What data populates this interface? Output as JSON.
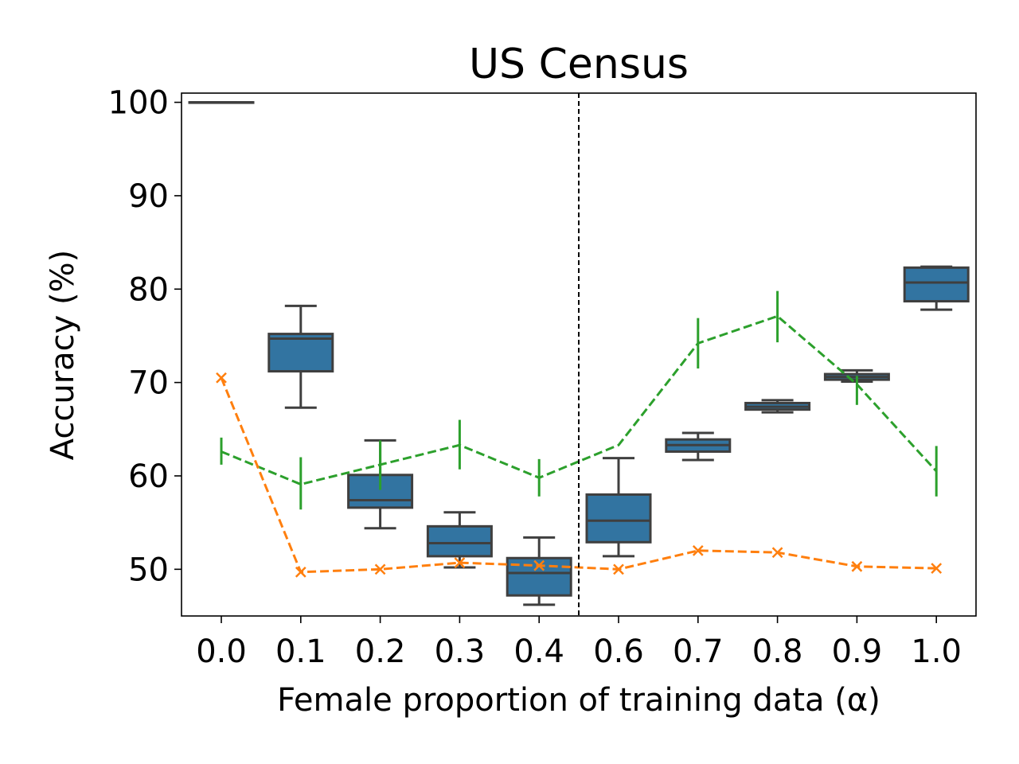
{
  "chart_data": {
    "type": "box",
    "title": "US Census",
    "xlabel": "Female proportion of training data (α)",
    "ylabel": "Accuracy (%)",
    "categories": [
      "0.0",
      "0.1",
      "0.2",
      "0.3",
      "0.4",
      "0.6",
      "0.7",
      "0.8",
      "0.9",
      "1.0"
    ],
    "ylim": [
      45,
      101
    ],
    "yticks": [
      50,
      60,
      70,
      80,
      90,
      100
    ],
    "grid": false,
    "divider_between": [
      "0.4",
      "0.6"
    ],
    "boxes": [
      {
        "x": "0.0",
        "whisker_low": 100,
        "q1": 100,
        "median": 100,
        "q3": 100,
        "whisker_high": 100
      },
      {
        "x": "0.1",
        "whisker_low": 67.3,
        "q1": 71.2,
        "median": 74.7,
        "q3": 75.2,
        "whisker_high": 78.2
      },
      {
        "x": "0.2",
        "whisker_low": 54.4,
        "q1": 56.6,
        "median": 57.4,
        "q3": 60.1,
        "whisker_high": 63.8
      },
      {
        "x": "0.3",
        "whisker_low": 50.2,
        "q1": 51.4,
        "median": 52.8,
        "q3": 54.6,
        "whisker_high": 56.1
      },
      {
        "x": "0.4",
        "whisker_low": 46.2,
        "q1": 47.2,
        "median": 49.6,
        "q3": 51.2,
        "whisker_high": 53.4
      },
      {
        "x": "0.6",
        "whisker_low": 51.4,
        "q1": 52.9,
        "median": 55.2,
        "q3": 58.0,
        "whisker_high": 61.9
      },
      {
        "x": "0.7",
        "whisker_low": 61.7,
        "q1": 62.6,
        "median": 63.3,
        "q3": 63.9,
        "whisker_high": 64.6
      },
      {
        "x": "0.8",
        "whisker_low": 66.8,
        "q1": 67.1,
        "median": 67.4,
        "q3": 67.8,
        "whisker_high": 68.1
      },
      {
        "x": "0.9",
        "whisker_low": 70.1,
        "q1": 70.3,
        "median": 70.6,
        "q3": 70.9,
        "whisker_high": 71.3
      },
      {
        "x": "1.0",
        "whisker_low": 77.8,
        "q1": 78.7,
        "median": 80.7,
        "q3": 82.3,
        "whisker_high": 82.4
      }
    ],
    "series": [
      {
        "color": "#2ca02c",
        "style": "dashed",
        "marker": "vertical-errorbar",
        "values": [
          62.6,
          59.1,
          61.2,
          63.3,
          59.8,
          63.3,
          74.2,
          77.1,
          69.8,
          60.5
        ],
        "err_low": [
          61.2,
          56.4,
          58.5,
          60.7,
          57.8,
          63.3,
          71.5,
          74.3,
          67.6,
          57.8
        ],
        "err_high": [
          64.1,
          62.0,
          63.8,
          66.0,
          61.8,
          63.3,
          76.9,
          79.8,
          70.7,
          63.2
        ]
      },
      {
        "color": "#ff7f0e",
        "style": "dashed",
        "marker": "x",
        "values": [
          70.5,
          49.7,
          50.0,
          50.7,
          50.4,
          50.0,
          52.0,
          51.8,
          50.3,
          50.1
        ]
      }
    ],
    "colors": {
      "box_fill": "#3274a1",
      "box_edge": "#3f3f3f",
      "axes": "#000000"
    }
  }
}
